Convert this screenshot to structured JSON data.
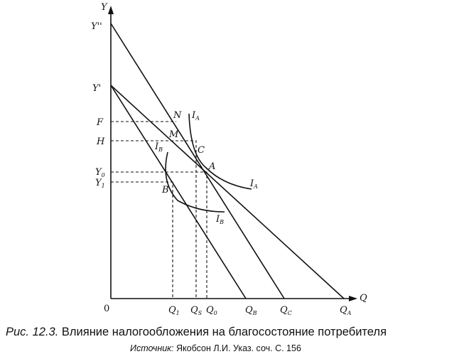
{
  "axes": {
    "y_label": "Y",
    "x_label": "Q",
    "origin": "0"
  },
  "y_ticks": {
    "y2": "Y''",
    "y1": "Y'",
    "f": "F",
    "h": "H",
    "y0": "Y",
    "y0_sub": "0",
    "y1b": "Y",
    "y1b_sub": "1"
  },
  "x_ticks": {
    "q1": "Q",
    "q1_sub": "1",
    "qs": "Q",
    "qs_sub": "S",
    "q0": "Q",
    "q0_sub": "0",
    "qb": "Q",
    "qb_sub": "B",
    "qc": "Q",
    "qc_sub": "C",
    "qa": "Q",
    "qa_sub": "A"
  },
  "points": {
    "n": "N",
    "m": "M",
    "c": "C",
    "a": "A",
    "b": "B"
  },
  "curves": {
    "ia_top": "I",
    "ia_top_sub": "A",
    "ia_right": "I",
    "ia_right_sub": "A",
    "ib_top": "I",
    "ib_top_sub": "B",
    "ib_bottom": "I",
    "ib_bottom_sub": "B"
  },
  "caption": {
    "figure_number": "Рис. 12.3.",
    "title": "Влияние налогообложения на благосостояние потребителя"
  },
  "source": {
    "label": "Источник:",
    "text": "Якобсон Л.И. Указ. соч. С. 156"
  }
}
